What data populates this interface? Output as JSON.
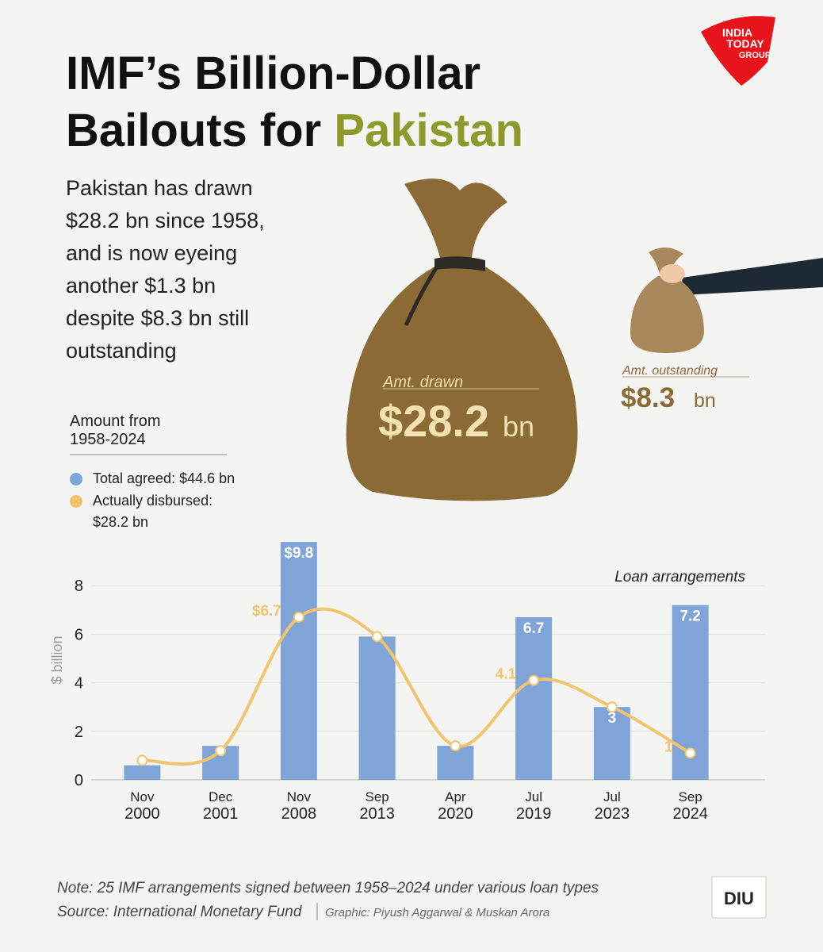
{
  "header": {
    "title_line1": "IMF’s Billion-Dollar",
    "title_line2": "Bailouts for",
    "title_highlight": "Pakistan",
    "description": [
      "Pakistan has drawn",
      "$28.2 bn since 1958,",
      "and is now eyeing",
      "another $1.3 bn",
      "despite $8.3 bn still",
      "outstanding"
    ],
    "logo": [
      "INDIA",
      "TODAY",
      "GROUP"
    ]
  },
  "bags": {
    "drawn_label": "Amt. drawn",
    "drawn_value": "$28.2",
    "drawn_unit": "bn",
    "outstanding_label": "Amt. outstanding",
    "outstanding_value": "$8.3",
    "outstanding_unit": "bn"
  },
  "chart_data": {
    "type": "bar_line",
    "legend_title": [
      "Amount from",
      "1958-2024"
    ],
    "annotation": "Loan arrangements",
    "ylabel": "$ billion",
    "categories": [
      [
        "Nov",
        "2000"
      ],
      [
        "Dec",
        "2001"
      ],
      [
        "Nov",
        "2008"
      ],
      [
        "Sep",
        "2013"
      ],
      [
        "Apr",
        "2020"
      ],
      [
        "Jul",
        "2019"
      ],
      [
        "Jul",
        "2023"
      ],
      [
        "Sep",
        "2024"
      ]
    ],
    "series": [
      {
        "name": "Total agreed: $44.6 bn",
        "type": "bar",
        "color": "#7fa4d8",
        "values": [
          0.6,
          1.4,
          9.8,
          5.9,
          1.4,
          6.7,
          3,
          7.2
        ],
        "value_labels": [
          null,
          null,
          "$9.8",
          null,
          null,
          "6.7",
          "3",
          "7.2"
        ]
      },
      {
        "name": "Actually disbursed: $28.2 bn",
        "type": "line",
        "color": "#f2c46e",
        "values": [
          0.8,
          1.2,
          6.7,
          5.9,
          1.4,
          4.1,
          3,
          1.1
        ],
        "value_labels": [
          null,
          null,
          "$6.7",
          null,
          null,
          "4.1",
          null,
          "1"
        ]
      }
    ],
    "ylim": [
      0,
      10
    ],
    "yticks": [
      0,
      2,
      4,
      6,
      8
    ],
    "grid": true
  },
  "footer": {
    "note": "Note: 25 IMF arrangements signed between 1958–2024 under various loan types",
    "source": "Source: International Monetary Fund",
    "credit": "Graphic: Piyush Aggarwal & Muskan Arora",
    "badge": "DIU"
  }
}
